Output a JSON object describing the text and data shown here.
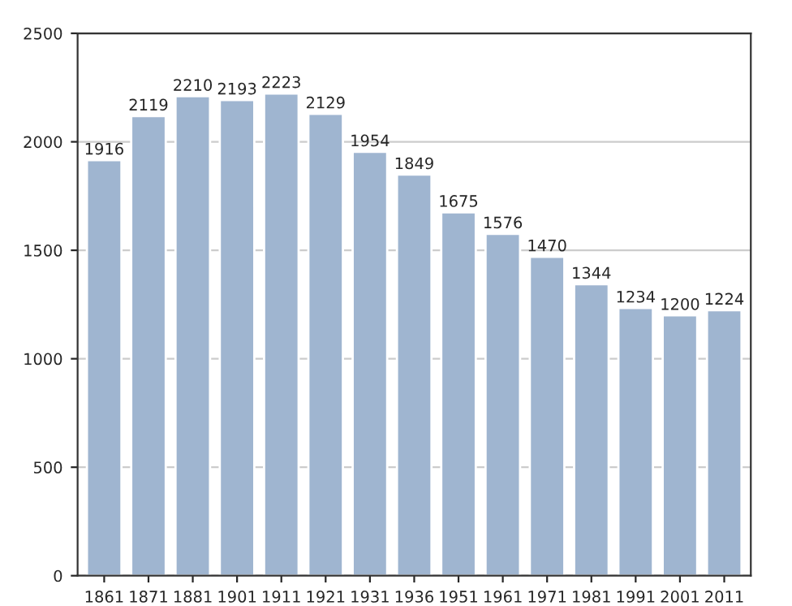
{
  "chart_data": {
    "type": "bar",
    "categories": [
      "1861",
      "1871",
      "1881",
      "1901",
      "1911",
      "1921",
      "1931",
      "1936",
      "1951",
      "1961",
      "1971",
      "1981",
      "1991",
      "2001",
      "2011"
    ],
    "values": [
      1916,
      2119,
      2210,
      2193,
      2223,
      2129,
      1954,
      1849,
      1675,
      1576,
      1470,
      1344,
      1234,
      1200,
      1224
    ],
    "color": "#9fb5d0",
    "ylim": [
      0,
      2500
    ],
    "yticks": [
      0,
      500,
      1000,
      1500,
      2000,
      2500
    ],
    "grid": "y",
    "data_labels": true
  }
}
